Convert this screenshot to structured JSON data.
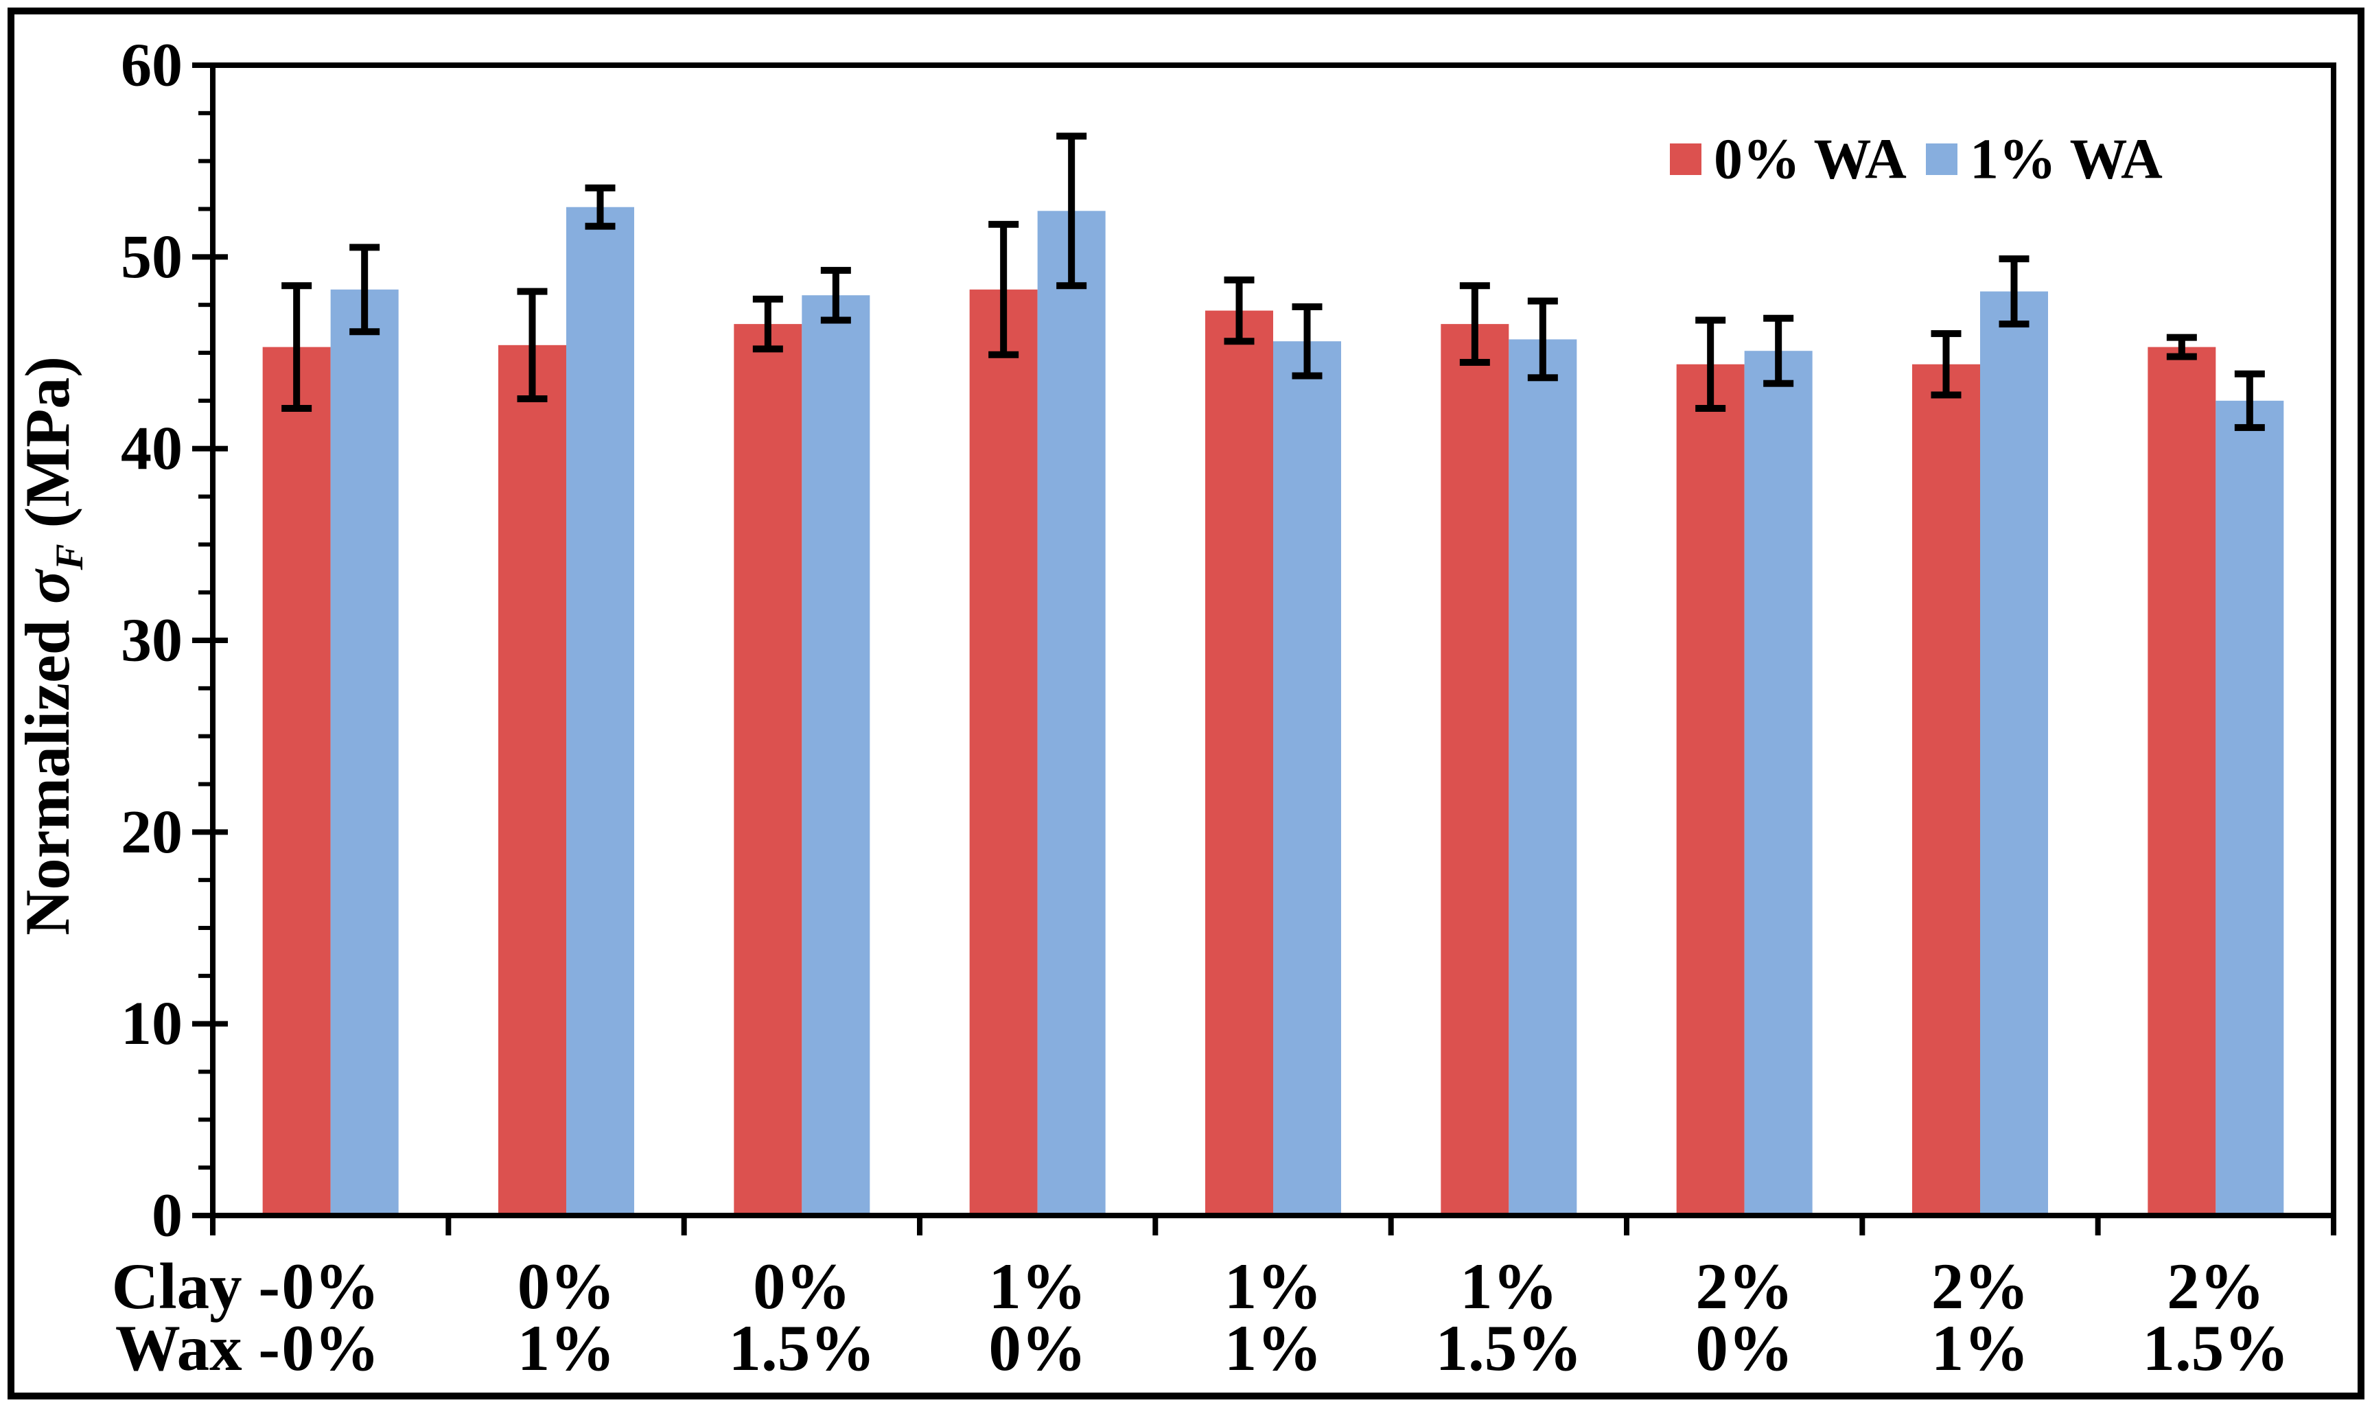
{
  "figure": {
    "background": "#ffffff",
    "border_color": "#000000"
  },
  "chart_data": {
    "type": "bar",
    "title": "",
    "ylabel": "Normalized σF (MPa)",
    "ylabel_parts": {
      "prefix": "Normalized ",
      "sigma": "σ",
      "subscript": "F",
      "suffix": " (MPa)"
    },
    "ylim": [
      0,
      60
    ],
    "y_major_ticks": [
      0,
      10,
      20,
      30,
      40,
      50,
      60
    ],
    "y_minor_step": 2.5,
    "grid": false,
    "legend_position": "top-right",
    "x_row_prefixes": {
      "row1": "Clay -",
      "row2": "Wax -"
    },
    "categories": [
      {
        "clay": "0%",
        "wax": "0%"
      },
      {
        "clay": "0%",
        "wax": "1%"
      },
      {
        "clay": "0%",
        "wax": "1.5%"
      },
      {
        "clay": "1%",
        "wax": "0%"
      },
      {
        "clay": "1%",
        "wax": "1%"
      },
      {
        "clay": "1%",
        "wax": "1.5%"
      },
      {
        "clay": "2%",
        "wax": "0%"
      },
      {
        "clay": "2%",
        "wax": "1%"
      },
      {
        "clay": "2%",
        "wax": "1.5%"
      }
    ],
    "series": [
      {
        "name": "0% WA",
        "color": "#DC514F",
        "values": [
          45.3,
          45.4,
          46.5,
          48.3,
          47.2,
          46.5,
          44.4,
          44.4,
          45.3
        ],
        "errors": [
          3.2,
          2.8,
          1.3,
          3.4,
          1.6,
          2.0,
          2.3,
          1.6,
          0.5
        ]
      },
      {
        "name": "1% WA",
        "color": "#87AEDE",
        "values": [
          48.3,
          52.6,
          48.0,
          52.4,
          45.6,
          45.7,
          45.1,
          48.2,
          42.5
        ],
        "errors": [
          2.2,
          1.0,
          1.3,
          3.9,
          1.8,
          2.0,
          1.7,
          1.7,
          1.4
        ]
      }
    ]
  }
}
